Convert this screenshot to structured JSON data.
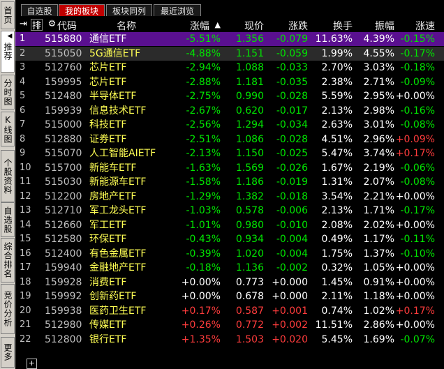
{
  "sidebar": {
    "tabs": [
      {
        "label": "首页",
        "active": false
      },
      {
        "label": "推荐",
        "active": true
      },
      {
        "label": "分时图",
        "active": false
      },
      {
        "label": "K线图",
        "active": false
      },
      {
        "label": "个股资料",
        "active": false
      },
      {
        "label": "自选股",
        "active": false
      },
      {
        "label": "综合排名",
        "active": false
      },
      {
        "label": "竞价分析",
        "active": false
      },
      {
        "label": "更多",
        "active": false
      }
    ]
  },
  "tabs": [
    {
      "label": "自选股"
    },
    {
      "label": "我的板块"
    },
    {
      "label": "板块同列"
    },
    {
      "label": "最近浏览"
    }
  ],
  "header": {
    "code": "代码",
    "name": "名称",
    "pct": "涨幅",
    "price": "现价",
    "chg": "涨跌",
    "turnover": "换手",
    "amplitude": "振幅",
    "speed": "涨速"
  },
  "rows": [
    {
      "no": "1",
      "code": "515880",
      "name": "通信ETF",
      "pct": "-5.51%",
      "price": "1.356",
      "chg": "-0.079",
      "turn": "11.63%",
      "amp": "4.39%",
      "spd": "-0.15%"
    },
    {
      "no": "2",
      "code": "515050",
      "name": "5G通信ETF",
      "pct": "-4.88%",
      "price": "1.151",
      "chg": "-0.059",
      "turn": "1.99%",
      "amp": "4.55%",
      "spd": "-0.17%"
    },
    {
      "no": "3",
      "code": "512760",
      "name": "芯片ETF",
      "pct": "-2.94%",
      "price": "1.088",
      "chg": "-0.033",
      "turn": "2.70%",
      "amp": "3.03%",
      "spd": "-0.18%"
    },
    {
      "no": "4",
      "code": "159995",
      "name": "芯片ETF",
      "pct": "-2.88%",
      "price": "1.181",
      "chg": "-0.035",
      "turn": "2.38%",
      "amp": "2.71%",
      "spd": "-0.09%"
    },
    {
      "no": "5",
      "code": "512480",
      "name": "半导体ETF",
      "pct": "-2.75%",
      "price": "0.990",
      "chg": "-0.028",
      "turn": "5.59%",
      "amp": "2.95%",
      "spd": "+0.00%"
    },
    {
      "no": "6",
      "code": "159939",
      "name": "信息技术ETF",
      "pct": "-2.67%",
      "price": "0.620",
      "chg": "-0.017",
      "turn": "2.13%",
      "amp": "2.98%",
      "spd": "-0.16%"
    },
    {
      "no": "7",
      "code": "515000",
      "name": "科技ETF",
      "pct": "-2.56%",
      "price": "1.294",
      "chg": "-0.034",
      "turn": "2.63%",
      "amp": "3.01%",
      "spd": "-0.08%"
    },
    {
      "no": "8",
      "code": "512880",
      "name": "证券ETF",
      "pct": "-2.51%",
      "price": "1.086",
      "chg": "-0.028",
      "turn": "4.51%",
      "amp": "2.96%",
      "spd": "+0.09%"
    },
    {
      "no": "9",
      "code": "515070",
      "name": "人工智能AIETF",
      "pct": "-2.13%",
      "price": "1.150",
      "chg": "-0.025",
      "turn": "5.47%",
      "amp": "3.74%",
      "spd": "+0.17%"
    },
    {
      "no": "10",
      "code": "515700",
      "name": "新能车ETF",
      "pct": "-1.63%",
      "price": "1.569",
      "chg": "-0.026",
      "turn": "1.67%",
      "amp": "2.19%",
      "spd": "-0.06%"
    },
    {
      "no": "11",
      "code": "515030",
      "name": "新能源车ETF",
      "pct": "-1.58%",
      "price": "1.186",
      "chg": "-0.019",
      "turn": "1.31%",
      "amp": "2.07%",
      "spd": "-0.08%"
    },
    {
      "no": "12",
      "code": "512200",
      "name": "房地产ETF",
      "pct": "-1.29%",
      "price": "1.382",
      "chg": "-0.018",
      "turn": "3.54%",
      "amp": "2.21%",
      "spd": "+0.00%"
    },
    {
      "no": "13",
      "code": "512710",
      "name": "军工龙头ETF",
      "pct": "-1.03%",
      "price": "0.578",
      "chg": "-0.006",
      "turn": "2.13%",
      "amp": "1.71%",
      "spd": "-0.17%"
    },
    {
      "no": "14",
      "code": "512660",
      "name": "军工ETF",
      "pct": "-1.01%",
      "price": "0.980",
      "chg": "-0.010",
      "turn": "2.08%",
      "amp": "2.02%",
      "spd": "+0.00%"
    },
    {
      "no": "15",
      "code": "512580",
      "name": "环保ETF",
      "pct": "-0.43%",
      "price": "0.934",
      "chg": "-0.004",
      "turn": "0.49%",
      "amp": "1.17%",
      "spd": "-0.11%"
    },
    {
      "no": "16",
      "code": "512400",
      "name": "有色金属ETF",
      "pct": "-0.39%",
      "price": "1.020",
      "chg": "-0.004",
      "turn": "1.75%",
      "amp": "1.37%",
      "spd": "-0.10%"
    },
    {
      "no": "17",
      "code": "159940",
      "name": "金融地产ETF",
      "pct": "-0.18%",
      "price": "1.136",
      "chg": "-0.002",
      "turn": "0.32%",
      "amp": "1.05%",
      "spd": "+0.00%"
    },
    {
      "no": "18",
      "code": "159928",
      "name": "消费ETF",
      "pct": "+0.00%",
      "price": "0.773",
      "chg": "+0.000",
      "turn": "1.45%",
      "amp": "0.91%",
      "spd": "+0.00%"
    },
    {
      "no": "19",
      "code": "159992",
      "name": "创新药ETF",
      "pct": "+0.00%",
      "price": "0.678",
      "chg": "+0.000",
      "turn": "2.11%",
      "amp": "1.18%",
      "spd": "+0.00%"
    },
    {
      "no": "20",
      "code": "159938",
      "name": "医药卫生ETF",
      "pct": "+0.17%",
      "price": "0.587",
      "chg": "+0.001",
      "turn": "0.74%",
      "amp": "1.02%",
      "spd": "+0.17%"
    },
    {
      "no": "21",
      "code": "512980",
      "name": "传媒ETF",
      "pct": "+0.26%",
      "price": "0.772",
      "chg": "+0.002",
      "turn": "11.51%",
      "amp": "2.86%",
      "spd": "+0.00%"
    },
    {
      "no": "22",
      "code": "512800",
      "name": "银行ETF",
      "pct": "+1.35%",
      "price": "1.503",
      "chg": "+0.020",
      "turn": "5.45%",
      "amp": "1.69%",
      "spd": "-0.07%"
    }
  ],
  "colors": {
    "up": "#ff3c3c",
    "down": "#00e600",
    "flat": "#ffffff",
    "selected_row": "#5a1090",
    "active_tab": "#c00000"
  },
  "icons": [
    "pin-icon",
    "sort-icon",
    "gear-icon",
    "sort-up-icon",
    "plus-icon"
  ]
}
